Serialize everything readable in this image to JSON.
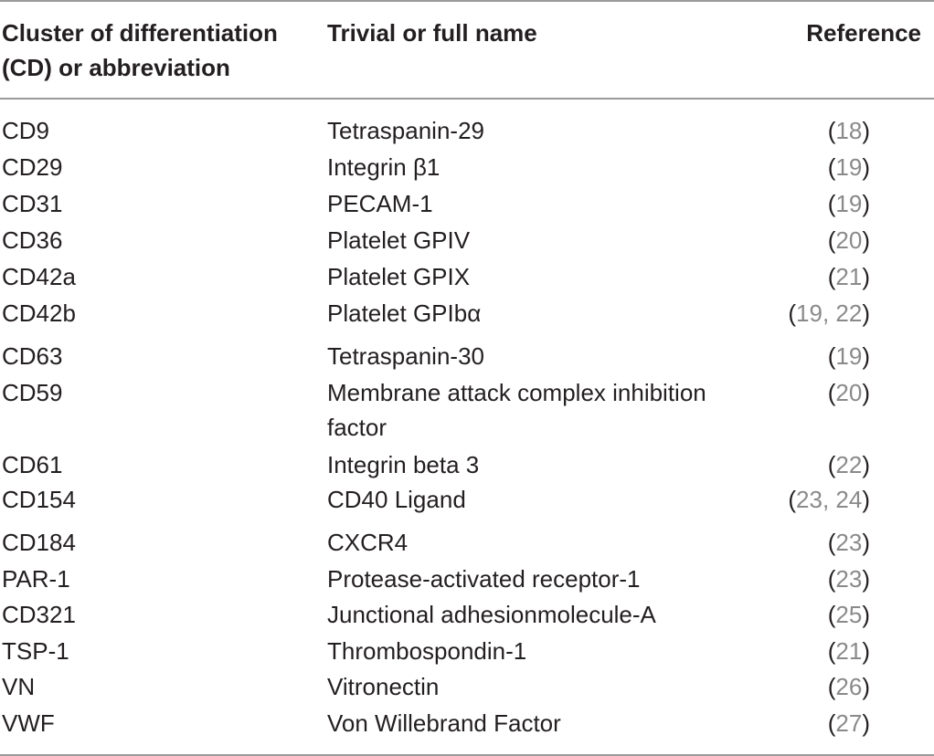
{
  "table": {
    "headers": {
      "cd_line1": "Cluster of differentiation",
      "cd_line2": "(CD) or abbreviation",
      "name": "Trivial or full name",
      "reference": "Reference"
    },
    "rows": [
      {
        "cd": "CD9",
        "name": "Tetraspanin-29",
        "refs": "18"
      },
      {
        "cd": "CD29",
        "name": "Integrin β1",
        "refs": "19"
      },
      {
        "cd": "CD31",
        "name": "PECAM-1",
        "refs": "19"
      },
      {
        "cd": "CD36",
        "name": "Platelet GPIV",
        "refs": "20"
      },
      {
        "cd": "CD42a",
        "name": "Platelet GPIX",
        "refs": "21"
      },
      {
        "cd": "CD42b",
        "name": "Platelet GPIbα",
        "refs": "19, 22"
      },
      {
        "cd": "CD63",
        "name": "Tetraspanin-30",
        "refs": "19"
      },
      {
        "cd": "CD59",
        "name": "Membrane attack complex inhibition",
        "name_line2": "factor",
        "refs": "20"
      },
      {
        "cd": "CD61",
        "name": "Integrin beta 3",
        "refs": "22"
      },
      {
        "cd": "CD154",
        "name": "CD40 Ligand",
        "refs": "23, 24"
      },
      {
        "cd": "CD184",
        "name": "CXCR4",
        "refs": "23"
      },
      {
        "cd": "PAR-1",
        "name": "Protease-activated receptor-1",
        "refs": "23"
      },
      {
        "cd": "CD321",
        "name": "Junctional adhesionmolecule-A",
        "refs": "25"
      },
      {
        "cd": "TSP-1",
        "name": "Thrombospondin-1",
        "refs": "21"
      },
      {
        "cd": "VN",
        "name": "Vitronectin",
        "refs": "26"
      },
      {
        "cd": "VWF",
        "name": "Von Willebrand Factor",
        "refs": "27"
      }
    ]
  }
}
